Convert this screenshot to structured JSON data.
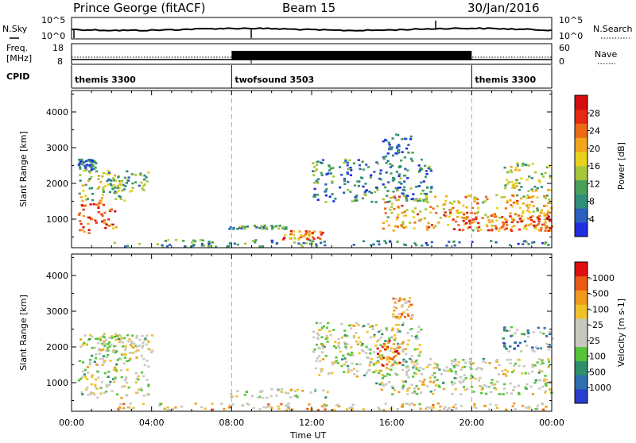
{
  "header": {
    "station": "Prince George (fitACF)",
    "beam": "Beam 15",
    "date": "30/Jan/2016"
  },
  "strip": {
    "nsky_label": "N.Sky",
    "nsky_ticks": [
      "10^5",
      "10^0"
    ],
    "nsearch_label": "N.Search",
    "nsearch_ticks": [
      "10^5",
      "10^0"
    ],
    "freq_label_line1": "Freq.",
    "freq_label_line2": "[MHz]",
    "freq_ticks": [
      "18",
      "8"
    ],
    "nave_label": "Nave",
    "nave_ticks": [
      "60",
      "0"
    ],
    "cpid_label": "CPID"
  },
  "cpid_segments": [
    {
      "name": "themis 3300",
      "start_h": 0,
      "end_h": 8
    },
    {
      "name": "twofsound 3503",
      "start_h": 8,
      "end_h": 20
    },
    {
      "name": "themis 3300",
      "start_h": 20,
      "end_h": 24
    }
  ],
  "time_axis": {
    "label": "Time UT",
    "ticks": [
      "00:00",
      "04:00",
      "08:00",
      "12:00",
      "16:00",
      "20:00",
      "00:00"
    ],
    "range_h": [
      0,
      24
    ]
  },
  "chart_data": [
    {
      "type": "heatmap",
      "name": "power",
      "ylabel": "Slant Range [km]",
      "yticks": [
        "1000",
        "2000",
        "3000",
        "4000"
      ],
      "ylim": [
        200,
        4600
      ],
      "colorbar_label": "Power [dB]",
      "colorbar_ticks": [
        "4",
        "8",
        "12",
        "16",
        "20",
        "24",
        "28"
      ],
      "colorbar_colors": [
        "#1e2ee0",
        "#2d5fc0",
        "#2f8f7a",
        "#4aa05a",
        "#a6c63c",
        "#e8d21e",
        "#f2a51a",
        "#ee6a16",
        "#e62a12",
        "#d40e0e"
      ],
      "clusters": [
        {
          "t0": 0.3,
          "t1": 2.2,
          "r0": 600,
          "r1": 1500,
          "level": 0.8
        },
        {
          "t0": 0.3,
          "t1": 2.8,
          "r0": 1500,
          "r1": 2400,
          "level": 0.45
        },
        {
          "t0": 1.8,
          "t1": 3.8,
          "r0": 1800,
          "r1": 2350,
          "level": 0.35
        },
        {
          "t0": 0.3,
          "t1": 1.2,
          "r0": 2400,
          "r1": 2700,
          "level": 0.2
        },
        {
          "t0": 7.8,
          "t1": 11.0,
          "r0": 750,
          "r1": 850,
          "level": 0.35
        },
        {
          "t0": 10.5,
          "t1": 12.5,
          "r0": 450,
          "r1": 700,
          "level": 0.7
        },
        {
          "t0": 2.0,
          "t1": 13.0,
          "r0": 250,
          "r1": 450,
          "level": 0.3
        },
        {
          "t0": 12.0,
          "t1": 18.0,
          "r0": 1500,
          "r1": 2700,
          "level": 0.25
        },
        {
          "t0": 15.5,
          "t1": 17.0,
          "r0": 2700,
          "r1": 3400,
          "level": 0.15
        },
        {
          "t0": 15.5,
          "t1": 24.0,
          "r0": 700,
          "r1": 1700,
          "level": 0.6
        },
        {
          "t0": 19.0,
          "t1": 24.0,
          "r0": 700,
          "r1": 1200,
          "level": 0.8
        },
        {
          "t0": 21.5,
          "t1": 24.0,
          "r0": 1800,
          "r1": 2600,
          "level": 0.45
        },
        {
          "t0": 14.0,
          "t1": 24.0,
          "r0": 280,
          "r1": 420,
          "level": 0.25
        }
      ]
    },
    {
      "type": "heatmap",
      "name": "velocity",
      "ylabel": "Slant Range [km]",
      "yticks": [
        "1000",
        "2000",
        "3000",
        "4000"
      ],
      "ylim": [
        200,
        4600
      ],
      "colorbar_label": "Velocity [m s-1]",
      "colorbar_ticks": [
        "1000",
        "500",
        "100",
        "25",
        "-25",
        "-100",
        "-500",
        "-1000"
      ],
      "colorbar_colors": [
        "#2a3ccc",
        "#2d6fb0",
        "#2f8f6a",
        "#56c43a",
        "#c8c8c0",
        "#c8c8c0",
        "#efc22a",
        "#ef9a1c",
        "#ec5a14",
        "#e01010"
      ],
      "clusters": [
        {
          "t0": 0.3,
          "t1": 3.8,
          "r0": 600,
          "r1": 2400,
          "level": 0.5
        },
        {
          "t0": 1.5,
          "t1": 4.0,
          "r0": 1800,
          "r1": 2400,
          "level": 0.5
        },
        {
          "t0": 7.8,
          "t1": 13.0,
          "r0": 600,
          "r1": 850,
          "level": 0.5
        },
        {
          "t0": 2.0,
          "t1": 14.0,
          "r0": 250,
          "r1": 450,
          "level": 0.62
        },
        {
          "t0": 12.0,
          "t1": 17.5,
          "r0": 1200,
          "r1": 2700,
          "level": 0.5
        },
        {
          "t0": 15.2,
          "t1": 16.4,
          "r0": 1500,
          "r1": 2200,
          "level": 0.82
        },
        {
          "t0": 15.0,
          "t1": 24.0,
          "r0": 700,
          "r1": 1700,
          "level": 0.5
        },
        {
          "t0": 21.5,
          "t1": 24.0,
          "r0": 1900,
          "r1": 2600,
          "level": 0.3
        },
        {
          "t0": 16.0,
          "t1": 17.0,
          "r0": 2800,
          "r1": 3400,
          "level": 0.65
        },
        {
          "t0": 13.0,
          "t1": 24.0,
          "r0": 250,
          "r1": 450,
          "level": 0.6
        }
      ]
    }
  ]
}
